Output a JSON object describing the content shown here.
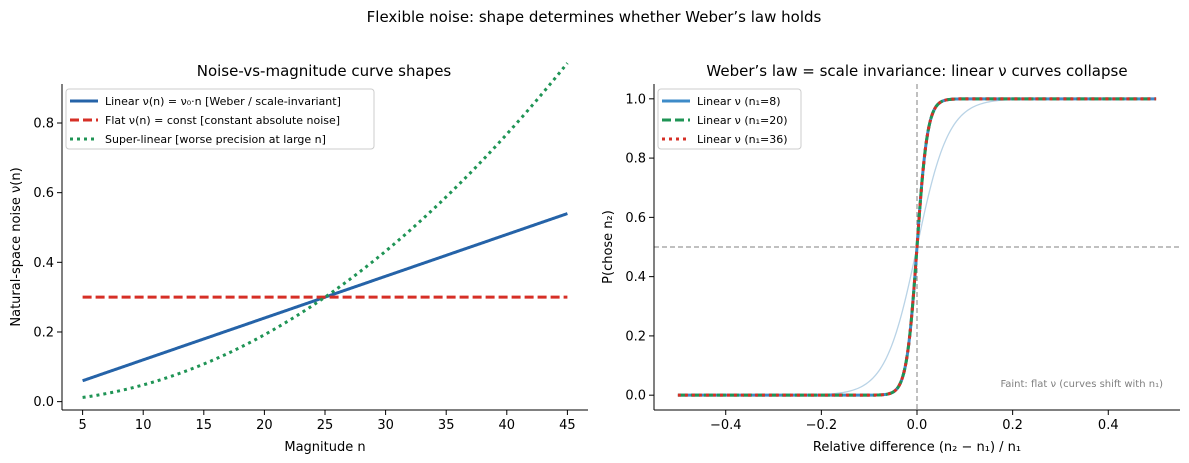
{
  "figure": {
    "suptitle": "Flexible noise: shape determines whether Weber’s law holds"
  },
  "chart_data": [
    {
      "type": "line",
      "title": "Noise-vs-magnitude curve shapes",
      "xlabel": "Magnitude  n",
      "ylabel": "Natural-space noise  ν(n)",
      "xlim": [
        3.3,
        46.7
      ],
      "ylim": [
        -0.024,
        0.912
      ],
      "xticks": [
        5,
        10,
        15,
        20,
        25,
        30,
        35,
        40,
        45
      ],
      "yticks": [
        0.0,
        0.2,
        0.4,
        0.6,
        0.8
      ],
      "ytick_labels": [
        "0.0",
        "0.2",
        "0.4",
        "0.6",
        "0.8"
      ],
      "legend_position": "upper-left",
      "series": [
        {
          "name": "Linear  ν(n) = ν₀·n  [Weber / scale-invariant]",
          "formula": "linear",
          "a": 0.012,
          "x_range": [
            5,
            45
          ],
          "color": "#2563a8",
          "style": "solid",
          "width": 3
        },
        {
          "name": "Flat  ν(n) = const  [constant absolute noise]",
          "formula": "const",
          "a": 0.3,
          "x_range": [
            5,
            45
          ],
          "color": "#d62f26",
          "style": "dashed",
          "width": 3
        },
        {
          "name": "Super-linear  [worse precision at large n]",
          "formula": "quadratic",
          "a": 0.00048,
          "x_range": [
            5,
            45
          ],
          "color": "#1f9455",
          "style": "dotted",
          "width": 3
        }
      ]
    },
    {
      "type": "line",
      "title": "Weber’s law = scale invariance: linear ν curves collapse",
      "xlabel": "Relative difference  (n₂ − n₁) / n₁",
      "ylabel": "P(chose n₂)",
      "xlim": [
        -0.55,
        0.55
      ],
      "ylim": [
        -0.05,
        1.05
      ],
      "xticks": [
        -0.4,
        -0.2,
        0.0,
        0.2,
        0.4
      ],
      "xtick_labels": [
        "−0.4",
        "−0.2",
        "0.0",
        "0.2",
        "0.4"
      ],
      "yticks": [
        0.0,
        0.2,
        0.4,
        0.6,
        0.8,
        1.0
      ],
      "ytick_labels": [
        "0.0",
        "0.2",
        "0.4",
        "0.6",
        "0.8",
        "1.0"
      ],
      "legend_position": "upper-left",
      "reference_lines": {
        "vertical_x": 0.0,
        "horizontal_y": 0.5,
        "color": "#808080"
      },
      "series": [
        {
          "name": "Linear ν (n₁=8)",
          "formula": "logistic",
          "scale": 0.011,
          "x_range": [
            -0.5,
            0.5
          ],
          "color": "#3d8bc8",
          "style": "solid",
          "width": 3
        },
        {
          "name": "Linear ν (n₁=20)",
          "formula": "logistic",
          "scale": 0.011,
          "x_range": [
            -0.5,
            0.5
          ],
          "color": "#1f9455",
          "style": "dashed",
          "width": 3
        },
        {
          "name": "Linear ν (n₁=36)",
          "formula": "logistic",
          "scale": 0.011,
          "x_range": [
            -0.5,
            0.5
          ],
          "color": "#d62f26",
          "style": "dotted",
          "width": 3
        }
      ],
      "faint_series": {
        "formula": "logistic",
        "scale": 0.033,
        "x_range": [
          -0.5,
          0.5
        ],
        "color": "#b9d3e6",
        "width": 1.3
      },
      "annotation": "Faint: flat ν (curves shift with n₁)"
    }
  ]
}
